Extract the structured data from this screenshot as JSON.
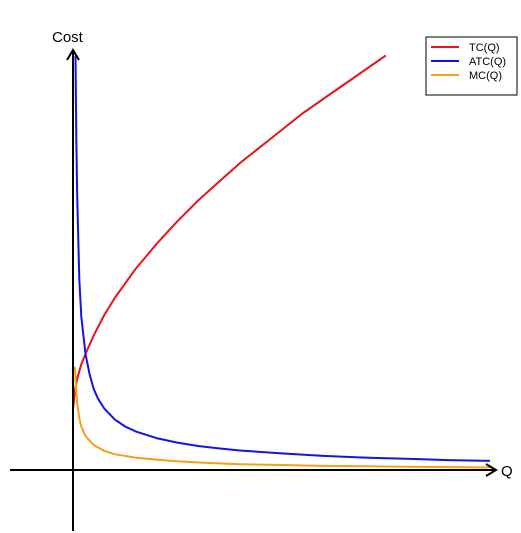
{
  "chart_data": {
    "type": "line",
    "title": "",
    "xlabel": "Q",
    "ylabel": "Cost",
    "xlim": [
      0,
      10
    ],
    "ylim": [
      0,
      11
    ],
    "grid": false,
    "legend_position": "top-right",
    "series": [
      {
        "name": "TC(Q)",
        "color": "#e8141c",
        "x": [
          0.001,
          0.005,
          0.01,
          0.02,
          0.05,
          0.1,
          0.2,
          0.3,
          0.5,
          0.75,
          1,
          1.5,
          2,
          2.5,
          3,
          3.5,
          4,
          4.5,
          5,
          5.5,
          6,
          6.5,
          7,
          7.5
        ],
        "y": [
          1.502,
          1.507,
          1.55,
          1.65,
          1.95,
          2.2,
          2.55,
          2.8,
          3.25,
          3.74,
          4.15,
          4.85,
          5.45,
          6.0,
          6.5,
          6.95,
          7.4,
          7.8,
          8.2,
          8.6,
          8.95,
          9.3,
          9.65,
          10.0
        ]
      },
      {
        "name": "ATC(Q)",
        "color": "#1414e6",
        "x": [
          0.06,
          0.08,
          0.1,
          0.15,
          0.2,
          0.3,
          0.4,
          0.5,
          0.6,
          0.75,
          1,
          1.25,
          1.5,
          2,
          2.5,
          3,
          3.5,
          4,
          5,
          6,
          7,
          8,
          9,
          10
        ],
        "y": [
          10.0,
          8.0,
          6.6,
          4.6,
          3.7,
          2.8,
          2.3,
          1.95,
          1.72,
          1.48,
          1.22,
          1.05,
          0.93,
          0.77,
          0.66,
          0.58,
          0.52,
          0.47,
          0.4,
          0.34,
          0.3,
          0.27,
          0.24,
          0.22
        ]
      },
      {
        "name": "MC(Q)",
        "color": "#f5a014",
        "x": [
          0.03,
          0.05,
          0.08,
          0.1,
          0.15,
          0.2,
          0.3,
          0.4,
          0.5,
          0.75,
          1,
          1.5,
          2,
          2.5,
          3,
          3.5,
          4,
          5,
          6,
          7,
          8,
          9,
          10
        ],
        "y": [
          2.5,
          2.4,
          1.85,
          1.6,
          1.25,
          1.05,
          0.82,
          0.7,
          0.6,
          0.46,
          0.38,
          0.3,
          0.25,
          0.21,
          0.18,
          0.16,
          0.14,
          0.12,
          0.1,
          0.09,
          0.08,
          0.07,
          0.06
        ]
      }
    ]
  }
}
